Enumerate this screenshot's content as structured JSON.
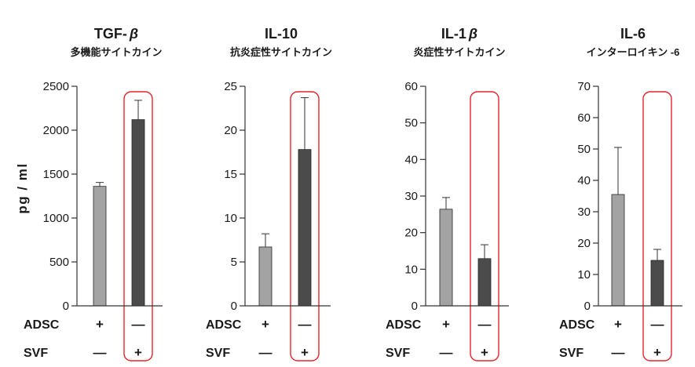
{
  "figure": {
    "background": "#ffffff",
    "text_color": "#1a1a1a",
    "axis_color": "#333333"
  },
  "chart_data": [
    {
      "type": "bar",
      "title": "TGF-β",
      "subtitle": "多機能サイトカイン",
      "ylabel": "pg / ml",
      "ylim": [
        0,
        2500
      ],
      "yticks": [
        0,
        500,
        1000,
        1500,
        2000,
        2500
      ],
      "values": [
        1360,
        2120
      ],
      "errors": [
        45,
        220
      ],
      "error_bars": "upper",
      "grid": false,
      "conditions": [
        {
          "label": "ADSC",
          "marks": [
            "+",
            "—"
          ]
        },
        {
          "label": "SVF",
          "marks": [
            "—",
            "+"
          ]
        }
      ],
      "bar_colors": [
        "#a3a3a3",
        "#4b4b4b"
      ],
      "highlight_index": 1,
      "highlight_color": "#e8232a"
    },
    {
      "type": "bar",
      "title": "IL-10",
      "subtitle": "抗炎症性サイトカイン",
      "ylim": [
        0,
        25
      ],
      "yticks": [
        0,
        5,
        10,
        15,
        20,
        25
      ],
      "values": [
        6.7,
        17.8
      ],
      "errors": [
        1.5,
        5.9
      ],
      "error_bars": "upper",
      "grid": false,
      "conditions": [
        {
          "label": "ADSC",
          "marks": [
            "+",
            "—"
          ]
        },
        {
          "label": "SVF",
          "marks": [
            "—",
            "+"
          ]
        }
      ],
      "bar_colors": [
        "#a3a3a3",
        "#4b4b4b"
      ],
      "highlight_index": 1,
      "highlight_color": "#e8232a"
    },
    {
      "type": "bar",
      "title": "IL-1β",
      "subtitle": "炎症性サイトカイン",
      "ylim": [
        0,
        60
      ],
      "yticks": [
        0,
        10,
        20,
        30,
        40,
        50,
        60
      ],
      "values": [
        26.4,
        12.9
      ],
      "errors": [
        3.2,
        3.8
      ],
      "error_bars": "upper",
      "grid": false,
      "conditions": [
        {
          "label": "ADSC",
          "marks": [
            "+",
            "—"
          ]
        },
        {
          "label": "SVF",
          "marks": [
            "—",
            "+"
          ]
        }
      ],
      "bar_colors": [
        "#a3a3a3",
        "#4b4b4b"
      ],
      "highlight_index": 1,
      "highlight_color": "#e8232a"
    },
    {
      "type": "bar",
      "title": "IL-6",
      "subtitle": "インターロイキン -6",
      "ylim": [
        0,
        70
      ],
      "yticks": [
        0,
        10,
        20,
        30,
        40,
        50,
        60,
        70
      ],
      "values": [
        35.5,
        14.5
      ],
      "errors": [
        15,
        3.5
      ],
      "error_bars": "upper",
      "grid": false,
      "conditions": [
        {
          "label": "ADSC",
          "marks": [
            "+",
            "—"
          ]
        },
        {
          "label": "SVF",
          "marks": [
            "—",
            "+"
          ]
        }
      ],
      "bar_colors": [
        "#a3a3a3",
        "#4b4b4b"
      ],
      "highlight_index": 1,
      "highlight_color": "#e8232a"
    }
  ]
}
